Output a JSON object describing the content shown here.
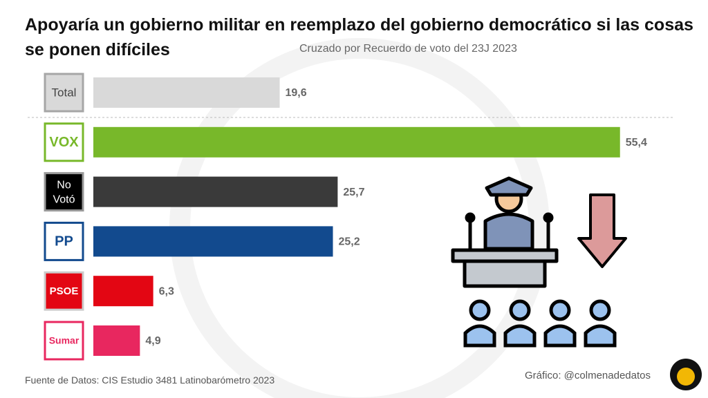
{
  "chart_data": {
    "type": "bar",
    "orientation": "horizontal",
    "title": "Apoyaría un gobierno militar en reemplazo del gobierno democrático si las cosas se ponen difíciles",
    "subtitle": "Cruzado por Recuerdo de voto del 23J 2023",
    "categories": [
      "Total",
      "VOX",
      "No Votó",
      "PP",
      "PSOE",
      "Sumar"
    ],
    "values": [
      19.6,
      55.4,
      25.7,
      25.2,
      6.3,
      4.9
    ],
    "value_labels": [
      "19,6",
      "55,4",
      "25,7",
      "25,2",
      "6,3",
      "4,9"
    ],
    "colors": [
      "#d9d9d9",
      "#78b82a",
      "#3a3a3a",
      "#124a8e",
      "#e30613",
      "#e8275f"
    ],
    "source": "Fuente de Datos: CIS Estudio 3481 Latinobarómetro 2023",
    "credit": "Gráfico: @colmenadedatos"
  }
}
